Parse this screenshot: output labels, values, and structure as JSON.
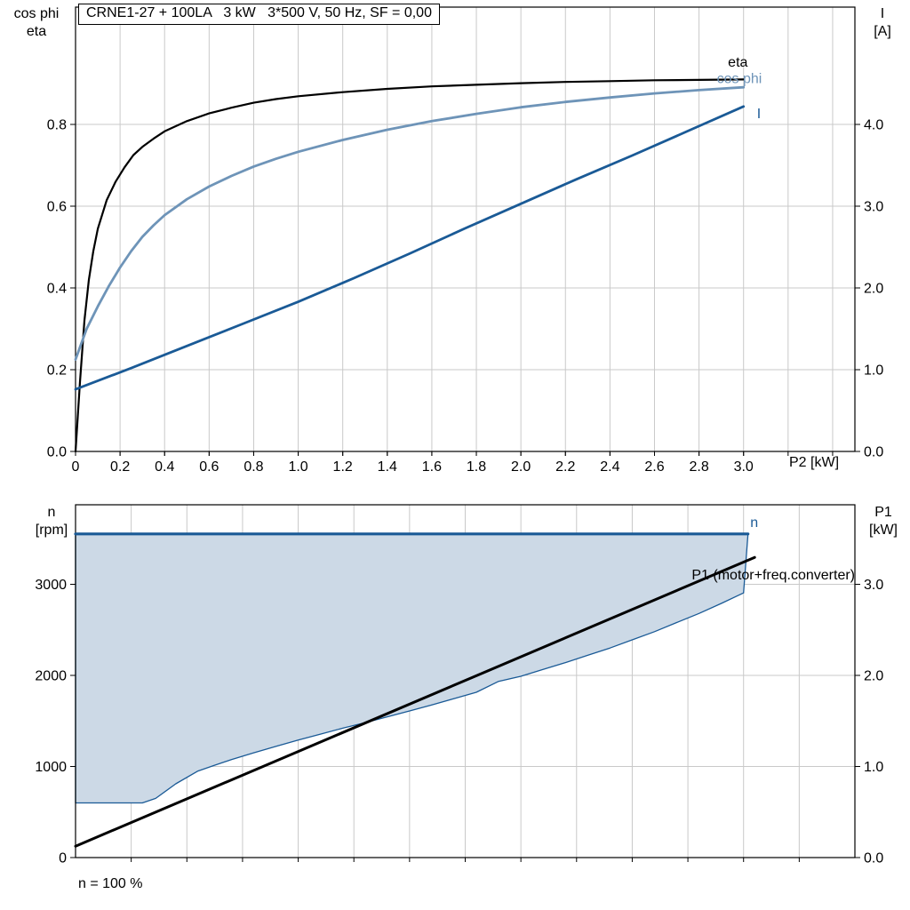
{
  "page": {
    "background": "#ffffff",
    "grid_color": "#c9c9c9",
    "frame_color": "#000000"
  },
  "chart_data": [
    {
      "type": "line",
      "title": "CRNE1-27 + 100LA   3 kW   3*500 V, 50 Hz, SF = 0,00",
      "x_axis": {
        "label": "P2 [kW]",
        "min": 0,
        "max": 3.5,
        "grid_step": 0.2,
        "grid_from": 0.2,
        "grid_to": 3.4,
        "ticks": [
          {
            "v": 0,
            "t": "0"
          },
          {
            "v": 0.2,
            "t": "0.2"
          },
          {
            "v": 0.4,
            "t": "0.4"
          },
          {
            "v": 0.6,
            "t": "0.6"
          },
          {
            "v": 0.8,
            "t": "0.8"
          },
          {
            "v": 1.0,
            "t": "1.0"
          },
          {
            "v": 1.2,
            "t": "1.2"
          },
          {
            "v": 1.4,
            "t": "1.4"
          },
          {
            "v": 1.6,
            "t": "1.6"
          },
          {
            "v": 1.8,
            "t": "1.8"
          },
          {
            "v": 2.0,
            "t": "2.0"
          },
          {
            "v": 2.2,
            "t": "2.2"
          },
          {
            "v": 2.4,
            "t": "2.4"
          },
          {
            "v": 2.6,
            "t": "2.6"
          },
          {
            "v": 2.8,
            "t": "2.8"
          },
          {
            "v": 3.0,
            "t": "3.0"
          }
        ]
      },
      "y_left": {
        "label_lines": [
          "cos phi",
          "eta"
        ],
        "min": 0,
        "max": 1.087,
        "ticks": [
          {
            "v": 0,
            "t": "0.0"
          },
          {
            "v": 0.2,
            "t": "0.2"
          },
          {
            "v": 0.4,
            "t": "0.4"
          },
          {
            "v": 0.6,
            "t": "0.6"
          },
          {
            "v": 0.8,
            "t": "0.8"
          }
        ]
      },
      "y_right": {
        "label_lines": [
          "I",
          "[A]"
        ],
        "min": 0,
        "max": 5.435,
        "ticks": [
          {
            "v": 0,
            "t": "0.0"
          },
          {
            "v": 1,
            "t": "1.0"
          },
          {
            "v": 2,
            "t": "2.0"
          },
          {
            "v": 3,
            "t": "3.0"
          },
          {
            "v": 4,
            "t": "4.0"
          }
        ]
      },
      "series": [
        {
          "name": "eta",
          "color": "#000000",
          "width": 2.2,
          "axis": "left",
          "points": [
            [
              0,
              0
            ],
            [
              0.02,
              0.17
            ],
            [
              0.04,
              0.32
            ],
            [
              0.06,
              0.42
            ],
            [
              0.08,
              0.49
            ],
            [
              0.1,
              0.545
            ],
            [
              0.14,
              0.615
            ],
            [
              0.18,
              0.66
            ],
            [
              0.22,
              0.695
            ],
            [
              0.26,
              0.725
            ],
            [
              0.3,
              0.745
            ],
            [
              0.35,
              0.765
            ],
            [
              0.4,
              0.783
            ],
            [
              0.5,
              0.808
            ],
            [
              0.6,
              0.827
            ],
            [
              0.7,
              0.841
            ],
            [
              0.8,
              0.853
            ],
            [
              0.9,
              0.862
            ],
            [
              1.0,
              0.869
            ],
            [
              1.2,
              0.879
            ],
            [
              1.4,
              0.887
            ],
            [
              1.6,
              0.893
            ],
            [
              1.8,
              0.897
            ],
            [
              2.0,
              0.901
            ],
            [
              2.2,
              0.904
            ],
            [
              2.4,
              0.906
            ],
            [
              2.6,
              0.908
            ],
            [
              2.8,
              0.909
            ],
            [
              3.0,
              0.91
            ]
          ]
        },
        {
          "name": "cos phi",
          "color": "#6E94B8",
          "width": 2.8,
          "axis": "left",
          "points": [
            [
              0,
              0.225
            ],
            [
              0.05,
              0.3
            ],
            [
              0.1,
              0.355
            ],
            [
              0.15,
              0.405
            ],
            [
              0.2,
              0.45
            ],
            [
              0.25,
              0.49
            ],
            [
              0.3,
              0.525
            ],
            [
              0.35,
              0.553
            ],
            [
              0.4,
              0.578
            ],
            [
              0.5,
              0.617
            ],
            [
              0.6,
              0.648
            ],
            [
              0.7,
              0.674
            ],
            [
              0.8,
              0.697
            ],
            [
              0.9,
              0.716
            ],
            [
              1.0,
              0.733
            ],
            [
              1.2,
              0.762
            ],
            [
              1.4,
              0.787
            ],
            [
              1.6,
              0.808
            ],
            [
              1.8,
              0.826
            ],
            [
              2.0,
              0.842
            ],
            [
              2.2,
              0.855
            ],
            [
              2.4,
              0.866
            ],
            [
              2.6,
              0.876
            ],
            [
              2.8,
              0.884
            ],
            [
              3.0,
              0.891
            ]
          ]
        },
        {
          "name": "I",
          "color": "#1A5A96",
          "width": 2.8,
          "axis": "right",
          "points": [
            [
              0,
              0.76
            ],
            [
              0.25,
              1.02
            ],
            [
              0.5,
              1.29
            ],
            [
              0.75,
              1.56
            ],
            [
              1.0,
              1.83
            ],
            [
              1.25,
              2.12
            ],
            [
              1.5,
              2.42
            ],
            [
              1.75,
              2.73
            ],
            [
              2.0,
              3.03
            ],
            [
              2.25,
              3.33
            ],
            [
              2.5,
              3.62
            ],
            [
              2.75,
              3.92
            ],
            [
              3.0,
              4.22
            ]
          ]
        }
      ],
      "annotations": [
        {
          "text": "eta",
          "x": 2.93,
          "v": 0.952,
          "axis": "left",
          "color": "#000000",
          "anchor": "start"
        },
        {
          "text": "cos phi",
          "x": 2.88,
          "v": 0.912,
          "axis": "left",
          "color": "#6E94B8",
          "anchor": "start"
        },
        {
          "text": "I",
          "x": 3.06,
          "v": 4.13,
          "axis": "right",
          "color": "#1A5A96",
          "anchor": "start"
        }
      ]
    },
    {
      "type": "line+area",
      "x_axis": {
        "label": "",
        "min": 0,
        "max": 3.5,
        "grid_step": 0.25,
        "grid_from": 0.25,
        "grid_to": 3.25,
        "ticks": []
      },
      "y_left": {
        "label_lines": [
          "n",
          "[rpm]"
        ],
        "min": 0,
        "max": 3873,
        "ticks": [
          {
            "v": 0,
            "t": "0"
          },
          {
            "v": 1000,
            "t": "1000"
          },
          {
            "v": 2000,
            "t": "2000"
          },
          {
            "v": 3000,
            "t": "3000"
          }
        ]
      },
      "y_right": {
        "label_lines": [
          "P1",
          "[kW]"
        ],
        "min": 0,
        "max": 3.873,
        "ticks": [
          {
            "v": 0,
            "t": "0.0"
          },
          {
            "v": 1,
            "t": "1.0"
          },
          {
            "v": 2,
            "t": "2.0"
          },
          {
            "v": 3,
            "t": "3.0"
          }
        ]
      },
      "area": {
        "name": "speed-operating-range",
        "fill": "#CCD9E6",
        "stroke": "#1A5A96",
        "stroke_width": 1.3,
        "axis": "left",
        "polygon": [
          [
            0,
            600
          ],
          [
            0.3,
            600
          ],
          [
            0.36,
            650
          ],
          [
            0.45,
            810
          ],
          [
            0.55,
            950
          ],
          [
            0.62,
            1010
          ],
          [
            0.7,
            1075
          ],
          [
            0.8,
            1150
          ],
          [
            0.9,
            1220
          ],
          [
            1.0,
            1290
          ],
          [
            1.1,
            1355
          ],
          [
            1.2,
            1420
          ],
          [
            1.3,
            1480
          ],
          [
            1.4,
            1545
          ],
          [
            1.5,
            1610
          ],
          [
            1.6,
            1675
          ],
          [
            1.7,
            1745
          ],
          [
            1.8,
            1815
          ],
          [
            1.9,
            1935
          ],
          [
            2.0,
            1990
          ],
          [
            2.1,
            2065
          ],
          [
            2.2,
            2140
          ],
          [
            2.3,
            2220
          ],
          [
            2.4,
            2300
          ],
          [
            2.5,
            2390
          ],
          [
            2.6,
            2480
          ],
          [
            2.7,
            2580
          ],
          [
            2.8,
            2680
          ],
          [
            2.9,
            2790
          ],
          [
            3.0,
            2905
          ],
          [
            3.02,
            3553
          ],
          [
            0,
            3553
          ]
        ]
      },
      "series": [
        {
          "name": "n",
          "color": "#1A5A96",
          "width": 3.2,
          "axis": "left",
          "points": [
            [
              0,
              3553
            ],
            [
              3.02,
              3553
            ]
          ]
        },
        {
          "name": "P1 (motor+freq.converter)",
          "color": "#000000",
          "width": 3,
          "axis": "right",
          "points": [
            [
              0,
              0.125
            ],
            [
              3.05,
              3.295
            ]
          ]
        }
      ],
      "annotations": [
        {
          "text": "n",
          "x": 3.03,
          "v": 3680,
          "axis": "left",
          "color": "#1A5A96",
          "anchor": "start"
        },
        {
          "text": "P1 (motor+freq.converter)",
          "x": 3.5,
          "v": 3.1,
          "axis": "right",
          "color": "#000000",
          "anchor": "end"
        }
      ],
      "footnote": "n = 100 %"
    }
  ]
}
